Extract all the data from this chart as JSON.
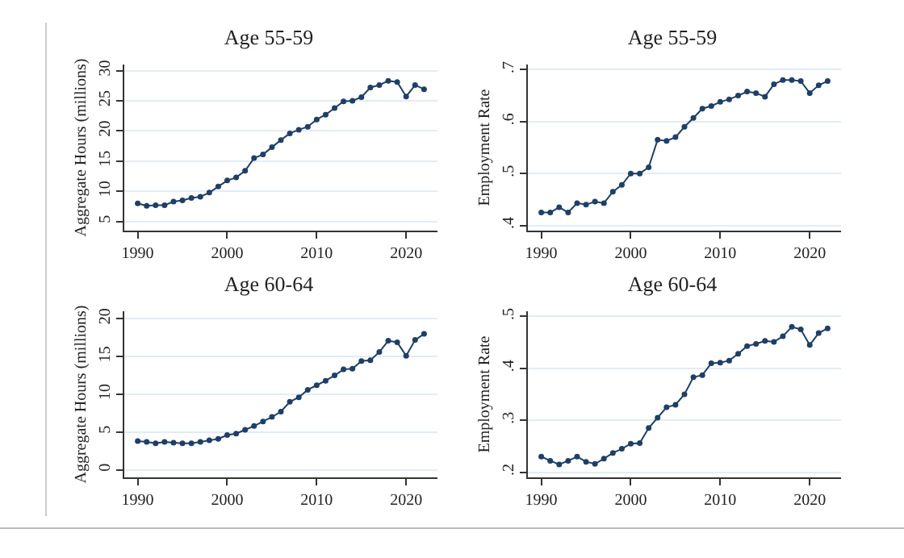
{
  "chart_data": [
    {
      "type": "line",
      "title": "Age 55-59",
      "ylabel": "Aggregate Hours (millions)",
      "x": [
        1990,
        1991,
        1992,
        1993,
        1994,
        1995,
        1996,
        1997,
        1998,
        1999,
        2000,
        2001,
        2002,
        2003,
        2004,
        2005,
        2006,
        2007,
        2008,
        2009,
        2010,
        2011,
        2012,
        2013,
        2014,
        2015,
        2016,
        2017,
        2018,
        2019,
        2020,
        2021,
        2022
      ],
      "series": [
        {
          "color": "#1f3f66",
          "values": [
            8,
            7.6,
            7.7,
            7.7,
            8.3,
            8.5,
            8.9,
            9.1,
            9.8,
            10.8,
            11.8,
            12.3,
            13.4,
            15.5,
            16.1,
            17.3,
            18.5,
            19.6,
            20.2,
            20.7,
            21.9,
            22.7,
            23.8,
            24.9,
            25.0,
            25.6,
            27.2,
            27.6,
            28.3,
            28.1,
            25.7,
            27.6,
            26.9
          ]
        }
      ],
      "xlim": [
        1988.5,
        2023.5
      ],
      "xticks": [
        1990,
        2000,
        2010,
        2020
      ],
      "ylim": [
        3.5,
        31
      ],
      "yticks": [
        5,
        10,
        15,
        20,
        25,
        30
      ],
      "grid": "y",
      "marker": "circle",
      "line_style": "solid"
    },
    {
      "type": "line",
      "title": "Age 55-59",
      "ylabel": "Employment Rate",
      "x": [
        1990,
        1991,
        1992,
        1993,
        1994,
        1995,
        1996,
        1997,
        1998,
        1999,
        2000,
        2001,
        2002,
        2003,
        2004,
        2005,
        2006,
        2007,
        2008,
        2009,
        2010,
        2011,
        2012,
        2013,
        2014,
        2015,
        2016,
        2017,
        2018,
        2019,
        2020,
        2021,
        2022
      ],
      "series": [
        {
          "color": "#1f3f66",
          "values": [
            0.425,
            0.425,
            0.435,
            0.425,
            0.443,
            0.44,
            0.446,
            0.443,
            0.465,
            0.478,
            0.5,
            0.5,
            0.512,
            0.565,
            0.563,
            0.57,
            0.59,
            0.607,
            0.625,
            0.63,
            0.638,
            0.643,
            0.65,
            0.658,
            0.655,
            0.648,
            0.672,
            0.68,
            0.68,
            0.678,
            0.655,
            0.67,
            0.678
          ]
        }
      ],
      "xlim": [
        1988.5,
        2023.5
      ],
      "xticks": [
        1990,
        2000,
        2010,
        2020
      ],
      "ylim": [
        0.39,
        0.71
      ],
      "yticks": [
        {
          "value": 0.4,
          "label": ".4"
        },
        {
          "value": 0.5,
          "label": ".5"
        },
        {
          "value": 0.6,
          "label": ".6"
        },
        {
          "value": 0.7,
          "label": ".7"
        }
      ],
      "grid": "y",
      "marker": "circle",
      "line_style": "solid"
    },
    {
      "type": "line",
      "title": "Age 60-64",
      "ylabel": "Aggregate Hours (millions)",
      "x": [
        1990,
        1991,
        1992,
        1993,
        1994,
        1995,
        1996,
        1997,
        1998,
        1999,
        2000,
        2001,
        2002,
        2003,
        2004,
        2005,
        2006,
        2007,
        2008,
        2009,
        2010,
        2011,
        2012,
        2013,
        2014,
        2015,
        2016,
        2017,
        2018,
        2019,
        2020,
        2021,
        2022
      ],
      "series": [
        {
          "color": "#1f3f66",
          "values": [
            3.8,
            3.7,
            3.5,
            3.7,
            3.6,
            3.5,
            3.5,
            3.7,
            3.9,
            4.1,
            4.6,
            4.8,
            5.3,
            5.8,
            6.4,
            7.0,
            7.7,
            9.0,
            9.6,
            10.6,
            11.2,
            11.8,
            12.5,
            13.3,
            13.4,
            14.4,
            14.5,
            15.6,
            17.1,
            16.9,
            15.1,
            17.2,
            18.0
          ]
        }
      ],
      "xlim": [
        1988.5,
        2023.5
      ],
      "xticks": [
        1990,
        2000,
        2010,
        2020
      ],
      "ylim": [
        -1,
        21
      ],
      "yticks": [
        0,
        5,
        10,
        15,
        20
      ],
      "grid": "y",
      "marker": "circle",
      "line_style": "solid"
    },
    {
      "type": "line",
      "title": "Age 60-64",
      "ylabel": "Employment Rate",
      "x": [
        1990,
        1991,
        1992,
        1993,
        1994,
        1995,
        1996,
        1997,
        1998,
        1999,
        2000,
        2001,
        2002,
        2003,
        2004,
        2005,
        2006,
        2007,
        2008,
        2009,
        2010,
        2011,
        2012,
        2013,
        2014,
        2015,
        2016,
        2017,
        2018,
        2019,
        2020,
        2021,
        2022
      ],
      "series": [
        {
          "color": "#1f3f66",
          "values": [
            0.23,
            0.222,
            0.215,
            0.222,
            0.23,
            0.22,
            0.216,
            0.226,
            0.237,
            0.245,
            0.255,
            0.256,
            0.285,
            0.305,
            0.325,
            0.33,
            0.35,
            0.383,
            0.387,
            0.41,
            0.411,
            0.415,
            0.428,
            0.443,
            0.447,
            0.453,
            0.451,
            0.462,
            0.48,
            0.475,
            0.445,
            0.468,
            0.477
          ]
        }
      ],
      "xlim": [
        1988.5,
        2023.5
      ],
      "xticks": [
        1990,
        2000,
        2010,
        2020
      ],
      "ylim": [
        0.19,
        0.51
      ],
      "yticks": [
        {
          "value": 0.2,
          "label": ".2"
        },
        {
          "value": 0.3,
          "label": ".3"
        },
        {
          "value": 0.4,
          "label": ".4"
        },
        {
          "value": 0.5,
          "label": ".5"
        }
      ],
      "grid": "y",
      "marker": "circle",
      "line_style": "solid"
    }
  ]
}
